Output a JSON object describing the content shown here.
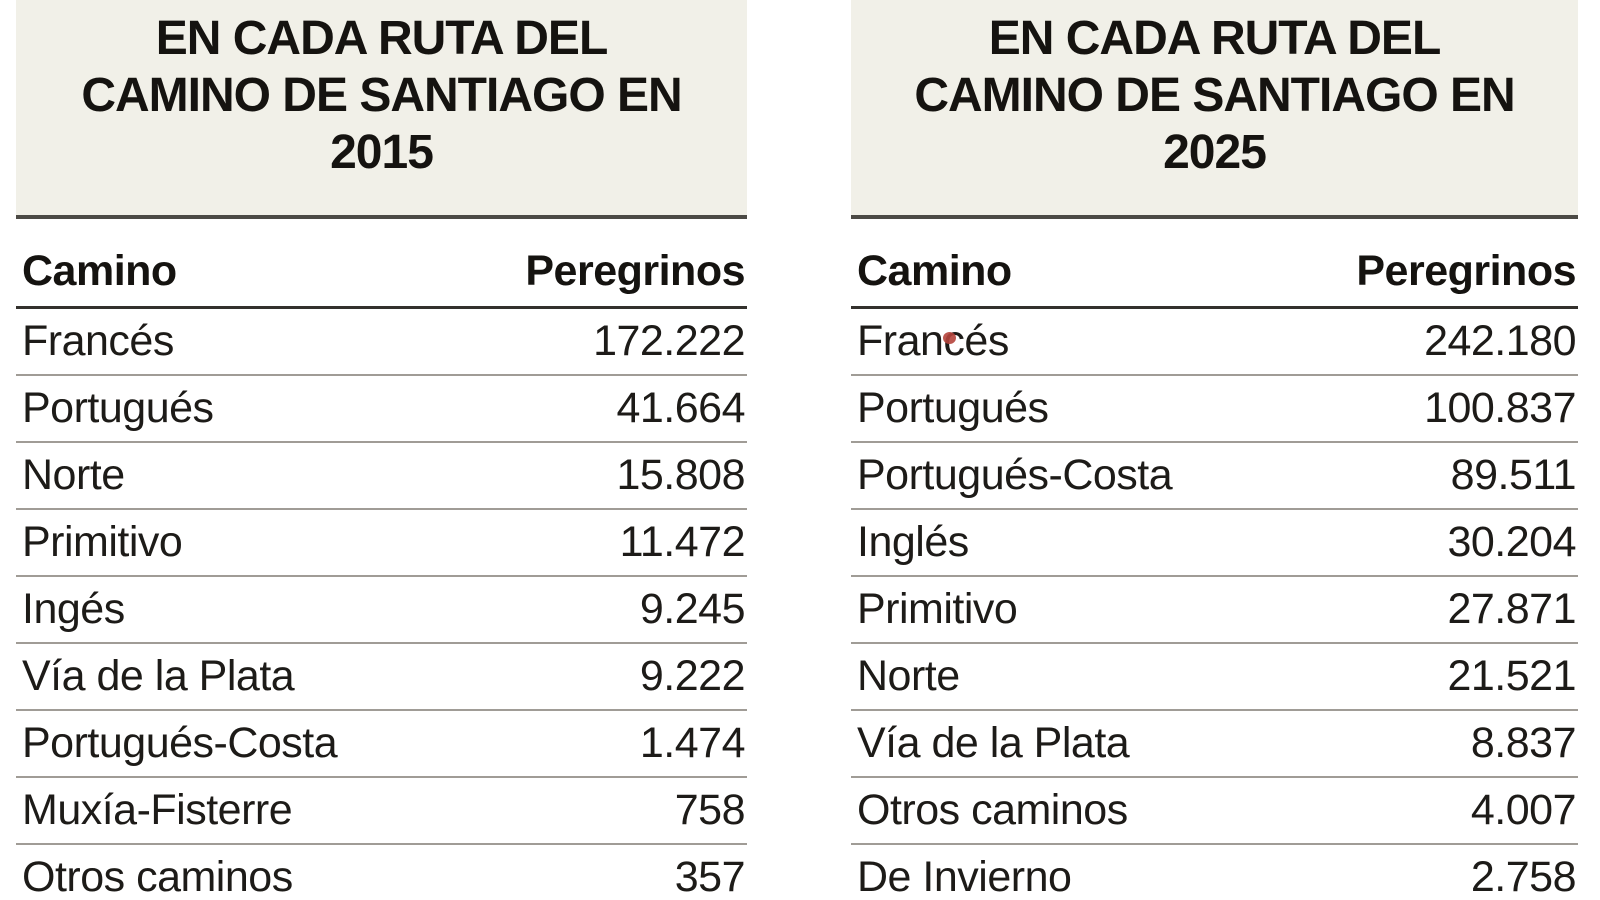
{
  "colors": {
    "header_bg": "#f1f0e8",
    "text": "#1d1b18",
    "title_text": "#151310",
    "thick_rule": "#4c4a45",
    "header_rule": "#33312d",
    "row_rule": "#a09c96",
    "red_dot": "#b5443c",
    "page_bg": "#ffffff"
  },
  "marker": {
    "type": "red-dot",
    "location": "above the letter c of Francés in the 2025 table"
  },
  "chart_data": [
    {
      "type": "table",
      "title": "EN CADA RUTA DEL CAMINO DE SANTIAGO EN 2015",
      "title_lines": [
        "EN CADA RUTA DEL",
        "CAMINO DE SANTIAGO EN",
        "2015"
      ],
      "columns": [
        "Camino",
        "Peregrinos"
      ],
      "rows": [
        [
          "Francés",
          "172.222"
        ],
        [
          "Portugués",
          "41.664"
        ],
        [
          "Norte",
          "15.808"
        ],
        [
          "Primitivo",
          "11.472"
        ],
        [
          "Ingés",
          "9.245"
        ],
        [
          "Vía de la Plata",
          "9.222"
        ],
        [
          "Portugués-Costa",
          "1.474"
        ],
        [
          "Muxía-Fisterre",
          "758"
        ],
        [
          "Otros caminos",
          "357"
        ]
      ],
      "values_numeric": [
        172222,
        41664,
        15808,
        11472,
        9245,
        9222,
        1474,
        758,
        357
      ]
    },
    {
      "type": "table",
      "title": "EN CADA RUTA DEL CAMINO DE SANTIAGO EN 2025",
      "title_lines": [
        "EN CADA RUTA DEL",
        "CAMINO DE SANTIAGO EN",
        "2025"
      ],
      "columns": [
        "Camino",
        "Peregrinos"
      ],
      "rows": [
        [
          "Francés",
          "242.180"
        ],
        [
          "Portugués",
          "100.837"
        ],
        [
          "Portugués-Costa",
          "89.511"
        ],
        [
          "Inglés",
          "30.204"
        ],
        [
          "Primitivo",
          "27.871"
        ],
        [
          "Norte",
          "21.521"
        ],
        [
          "Vía de la Plata",
          "8.837"
        ],
        [
          "Otros caminos",
          "4.007"
        ],
        [
          "De Invierno",
          "2.758"
        ]
      ],
      "values_numeric": [
        242180,
        100837,
        89511,
        30204,
        27871,
        21521,
        8837,
        4007,
        2758
      ]
    }
  ]
}
